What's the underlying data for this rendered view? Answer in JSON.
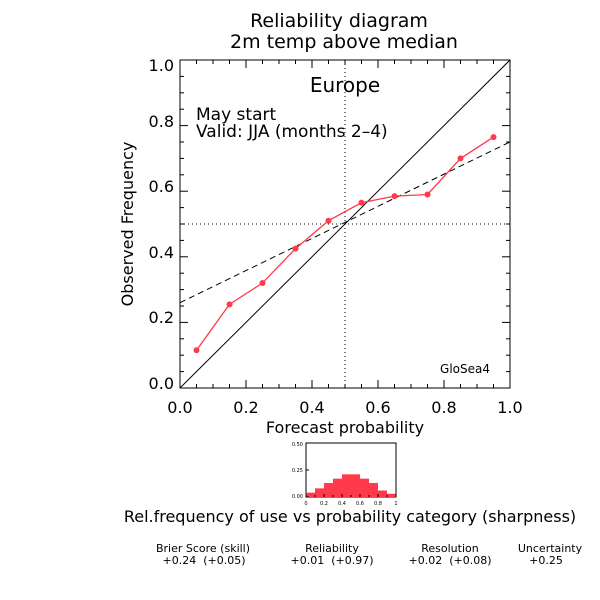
{
  "chart_data": [
    {
      "type": "line",
      "title": "Reliability diagram",
      "subtitle": "2m temp above median",
      "region": "Europe",
      "annotation_lines": [
        "May start",
        "Valid: JJA (months 2–4)"
      ],
      "model_label": "GloSea4",
      "xlabel": "Forecast probability",
      "ylabel": "Observed Frequency",
      "xlim": [
        0,
        1
      ],
      "ylim": [
        0,
        1
      ],
      "xticks": [
        "0.0",
        "0.2",
        "0.4",
        "0.6",
        "0.8",
        "1.0"
      ],
      "yticks": [
        "0.0",
        "0.2",
        "0.4",
        "0.6",
        "0.8",
        "1.0"
      ],
      "grid": false,
      "reference_lines": [
        {
          "kind": "diagonal",
          "style": "solid",
          "from": [
            0,
            0
          ],
          "to": [
            1,
            1
          ]
        },
        {
          "kind": "fit",
          "style": "dashed",
          "from": [
            0,
            0.26
          ],
          "to": [
            1,
            0.75
          ]
        },
        {
          "kind": "vertical",
          "style": "dotted",
          "x": 0.5
        },
        {
          "kind": "horizontal",
          "style": "dotted",
          "y": 0.5
        }
      ],
      "series": [
        {
          "color": "#ff3a4a",
          "x": [
            0.05,
            0.15,
            0.25,
            0.35,
            0.45,
            0.55,
            0.65,
            0.75,
            0.85,
            0.95
          ],
          "values": [
            0.115,
            0.255,
            0.32,
            0.425,
            0.51,
            0.565,
            0.585,
            0.59,
            0.7,
            0.765
          ]
        }
      ]
    },
    {
      "type": "bar",
      "caption": "Rel.frequency of use vs probability category (sharpness)",
      "bar_color": "#ff3a4a",
      "xlim": [
        0,
        1
      ],
      "ylim": [
        0,
        0.5
      ],
      "xticks": [
        "0",
        "0.2",
        "0.4",
        "0.6",
        "0.8",
        "1"
      ],
      "yticks": [
        "0.00",
        "0.25",
        "0.50"
      ],
      "categories": [
        0.05,
        0.15,
        0.25,
        0.35,
        0.45,
        0.55,
        0.65,
        0.75,
        0.85,
        0.95
      ],
      "values": [
        0.04,
        0.08,
        0.13,
        0.17,
        0.21,
        0.21,
        0.17,
        0.13,
        0.06,
        0.03
      ]
    }
  ],
  "scores": [
    {
      "label": "Brier Score (skill)",
      "value": "+0.24  (+0.05)"
    },
    {
      "label": "Reliability",
      "value": "+0.01  (+0.97)"
    },
    {
      "label": "Resolution",
      "value": "+0.02  (+0.08)"
    },
    {
      "label": "Uncertainty",
      "value": "+0.25"
    }
  ]
}
